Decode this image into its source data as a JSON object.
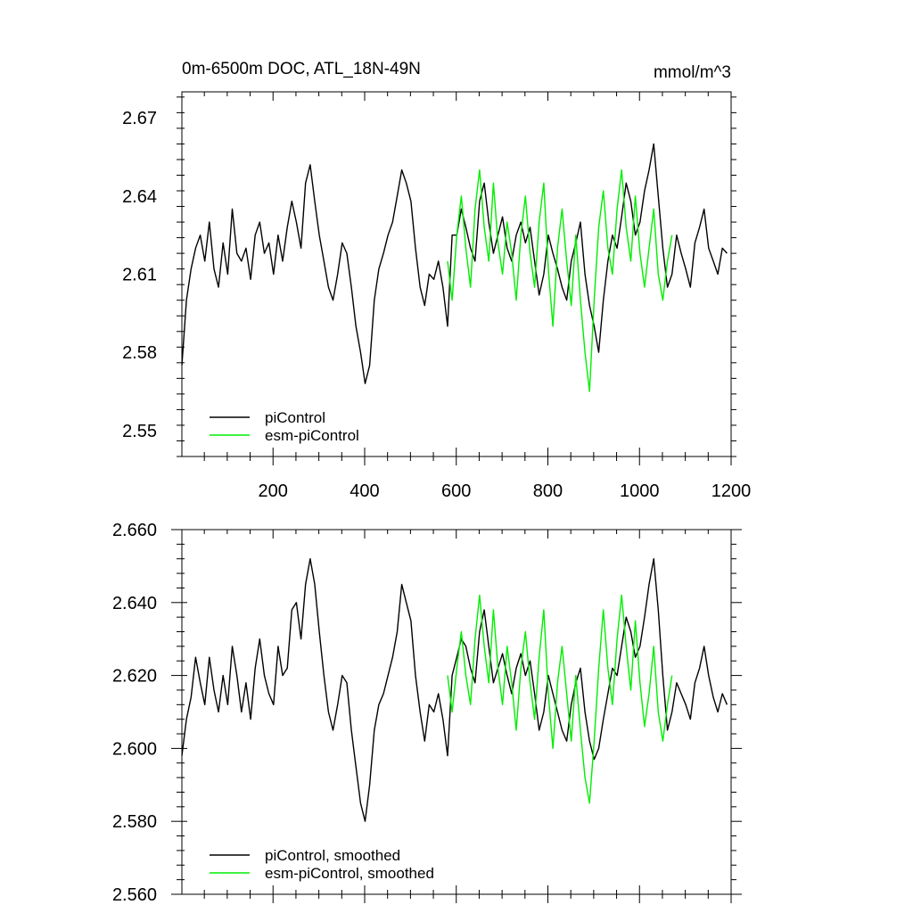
{
  "colors": {
    "series_1": "#000000",
    "series_2": "#00ee00",
    "axis": "#000000",
    "background": "#ffffff"
  },
  "chart_data": [
    {
      "type": "line",
      "title": "0m-6500m DOC, ATL_18N-49N",
      "units": "mmol/m^3",
      "xlabel": "",
      "ylabel": "",
      "xlim": [
        1,
        1200
      ],
      "ylim": [
        2.54,
        2.68
      ],
      "x_major_ticks": [
        200,
        400,
        600,
        800,
        1000,
        1200
      ],
      "x_tick_labels": [
        "200",
        "400",
        "600",
        "800",
        "1000",
        "1200"
      ],
      "y_major_ticks": [
        2.55,
        2.58,
        2.61,
        2.64,
        2.67
      ],
      "y_tick_labels": [
        "2.55",
        "2.58",
        "2.61",
        "2.64",
        "2.67"
      ],
      "legend": [
        "piControl",
        "esm-piControl"
      ],
      "legend_location": "bottom-left",
      "series": [
        {
          "name": "piControl",
          "color_key": "series_1",
          "x_start": 1,
          "x_step": 10,
          "values": [
            2.575,
            2.6,
            2.612,
            2.62,
            2.625,
            2.615,
            2.63,
            2.612,
            2.605,
            2.622,
            2.61,
            2.635,
            2.618,
            2.615,
            2.62,
            2.608,
            2.625,
            2.63,
            2.618,
            2.622,
            2.61,
            2.625,
            2.615,
            2.628,
            2.638,
            2.63,
            2.62,
            2.645,
            2.652,
            2.638,
            2.625,
            2.615,
            2.605,
            2.6,
            2.61,
            2.622,
            2.618,
            2.605,
            2.59,
            2.58,
            2.568,
            2.575,
            2.6,
            2.612,
            2.618,
            2.625,
            2.63,
            2.64,
            2.65,
            2.645,
            2.638,
            2.62,
            2.605,
            2.598,
            2.61,
            2.608,
            2.615,
            2.605,
            2.59,
            2.625,
            2.625,
            2.635,
            2.628,
            2.62,
            2.615,
            2.638,
            2.645,
            2.63,
            2.618,
            2.625,
            2.632,
            2.62,
            2.615,
            2.625,
            2.63,
            2.622,
            2.628,
            2.615,
            2.602,
            2.61,
            2.625,
            2.618,
            2.612,
            2.605,
            2.6,
            2.615,
            2.622,
            2.63,
            2.61,
            2.598,
            2.59,
            2.58,
            2.6,
            2.615,
            2.625,
            2.62,
            2.632,
            2.645,
            2.638,
            2.625,
            2.63,
            2.642,
            2.65,
            2.66,
            2.64,
            2.62,
            2.605,
            2.61,
            2.625,
            2.618,
            2.612,
            2.605,
            2.622,
            2.628,
            2.635,
            2.62,
            2.615,
            2.61,
            2.62,
            2.618
          ]
        },
        {
          "name": "esm-piControl",
          "color_key": "series_2",
          "x_start": 581,
          "x_step": 10,
          "values": [
            2.615,
            2.6,
            2.625,
            2.64,
            2.62,
            2.605,
            2.635,
            2.65,
            2.628,
            2.615,
            2.645,
            2.622,
            2.61,
            2.63,
            2.618,
            2.6,
            2.625,
            2.64,
            2.618,
            2.605,
            2.63,
            2.645,
            2.612,
            2.59,
            2.62,
            2.635,
            2.615,
            2.598,
            2.625,
            2.6,
            2.58,
            2.565,
            2.6,
            2.628,
            2.642,
            2.62,
            2.61,
            2.635,
            2.65,
            2.628,
            2.615,
            2.64,
            2.618,
            2.605,
            2.62,
            2.635,
            2.61,
            2.6,
            2.615,
            2.625
          ]
        }
      ]
    },
    {
      "type": "line",
      "title": "",
      "xlabel": "",
      "ylabel": "",
      "xlim": [
        1,
        1200
      ],
      "ylim": [
        2.56,
        2.66
      ],
      "x_major_ticks": [
        200,
        400,
        600,
        800,
        1000,
        1200
      ],
      "y_major_ticks": [
        2.56,
        2.58,
        2.6,
        2.62,
        2.64,
        2.66
      ],
      "y_tick_labels": [
        "2.560",
        "2.580",
        "2.600",
        "2.620",
        "2.640",
        "2.660"
      ],
      "legend": [
        "piControl, smoothed",
        "esm-piControl, smoothed"
      ],
      "legend_location": "bottom-left",
      "series": [
        {
          "name": "piControl, smoothed",
          "color_key": "series_1",
          "x_start": 1,
          "x_step": 10,
          "values": [
            2.598,
            2.608,
            2.614,
            2.625,
            2.618,
            2.612,
            2.625,
            2.616,
            2.61,
            2.62,
            2.612,
            2.628,
            2.62,
            2.61,
            2.618,
            2.608,
            2.622,
            2.63,
            2.62,
            2.615,
            2.612,
            2.628,
            2.62,
            2.622,
            2.638,
            2.64,
            2.63,
            2.645,
            2.652,
            2.645,
            2.632,
            2.62,
            2.61,
            2.605,
            2.612,
            2.62,
            2.618,
            2.605,
            2.595,
            2.585,
            2.58,
            2.59,
            2.605,
            2.612,
            2.615,
            2.62,
            2.625,
            2.632,
            2.645,
            2.64,
            2.635,
            2.62,
            2.61,
            2.602,
            2.612,
            2.61,
            2.615,
            2.608,
            2.598,
            2.62,
            2.625,
            2.63,
            2.628,
            2.622,
            2.618,
            2.632,
            2.638,
            2.628,
            2.618,
            2.622,
            2.626,
            2.62,
            2.615,
            2.622,
            2.626,
            2.62,
            2.624,
            2.615,
            2.605,
            2.61,
            2.62,
            2.615,
            2.61,
            2.605,
            2.602,
            2.612,
            2.618,
            2.622,
            2.61,
            2.602,
            2.597,
            2.6,
            2.608,
            2.615,
            2.622,
            2.62,
            2.628,
            2.636,
            2.632,
            2.625,
            2.628,
            2.636,
            2.645,
            2.652,
            2.638,
            2.62,
            2.605,
            2.61,
            2.618,
            2.615,
            2.612,
            2.608,
            2.618,
            2.622,
            2.628,
            2.62,
            2.614,
            2.61,
            2.615,
            2.612
          ]
        },
        {
          "name": "esm-piControl, smoothed",
          "color_key": "series_2",
          "x_start": 581,
          "x_step": 10,
          "values": [
            2.62,
            2.61,
            2.622,
            2.632,
            2.62,
            2.612,
            2.63,
            2.642,
            2.628,
            2.618,
            2.638,
            2.622,
            2.612,
            2.628,
            2.618,
            2.605,
            2.622,
            2.632,
            2.618,
            2.608,
            2.625,
            2.638,
            2.615,
            2.6,
            2.618,
            2.628,
            2.615,
            2.602,
            2.62,
            2.605,
            2.592,
            2.585,
            2.602,
            2.622,
            2.638,
            2.622,
            2.612,
            2.63,
            2.642,
            2.628,
            2.616,
            2.635,
            2.618,
            2.606,
            2.615,
            2.628,
            2.61,
            2.602,
            2.612,
            2.62
          ]
        }
      ]
    }
  ]
}
